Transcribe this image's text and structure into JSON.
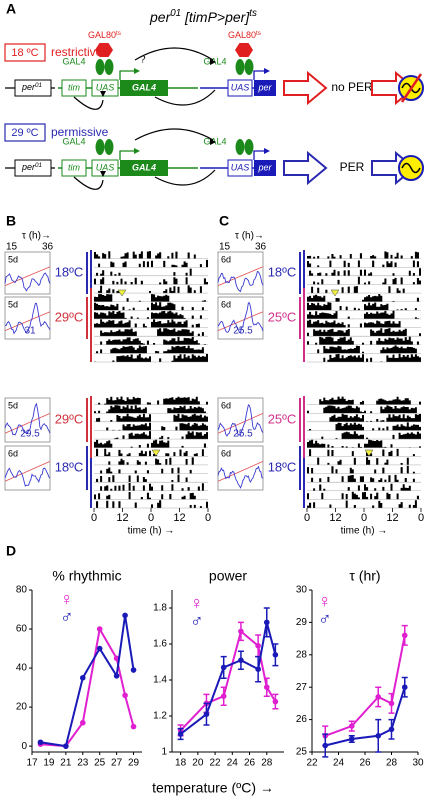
{
  "panel_a": {
    "label": "A",
    "title": {
      "gene": "per",
      "gene_sup": "01",
      "construct": " [timP>per]",
      "construct_sup": "ts"
    },
    "rows": [
      {
        "temperature": "18 ºC",
        "condition": "restrictive",
        "color": "#e02020",
        "per01": "per",
        "per01_sup": "01",
        "tim": "tim",
        "uas_left": "UAS",
        "gal4_box": "GAL4",
        "gal4_left": "GAL4",
        "gal4_right": "GAL4",
        "uas_right": "UAS",
        "per": "per",
        "outcome": "no PER",
        "question": "?",
        "gal80": [
          {
            "text": "GAL80",
            "sup": "ts"
          },
          {
            "text": "GAL80",
            "sup": "ts"
          }
        ]
      },
      {
        "temperature": "29 ºC",
        "condition": "permissive",
        "color": "#2a2ab0",
        "per01": "per",
        "per01_sup": "01",
        "tim": "tim",
        "uas_left": "UAS",
        "gal4_box": "GAL4",
        "gal4_left": "GAL4",
        "gal4_right": "GAL4",
        "uas_right": "UAS",
        "per": "per",
        "outcome": "PER"
      }
    ]
  },
  "panel_b": {
    "label": "B",
    "tau_label": "τ (h)→",
    "tau_min": 15,
    "tau_max": 36,
    "blocks": [
      {
        "insets": [
          {
            "days": "5d"
          },
          {
            "days": "5d",
            "period": 31
          }
        ],
        "temps": [
          {
            "text": "18ºC",
            "color": "#2a2ab0"
          },
          {
            "text": "29ºC",
            "color": "#d0303a"
          }
        ]
      },
      {
        "insets": [
          {
            "days": "5d",
            "period": 29.5
          },
          {
            "days": "6d"
          }
        ],
        "temps": [
          {
            "text": "29ºC",
            "color": "#d0303a"
          },
          {
            "text": "18ºC",
            "color": "#2a2ab0"
          }
        ]
      }
    ],
    "time_ticks": [
      0,
      12,
      0,
      12,
      0
    ],
    "time_label": "time (h) →"
  },
  "panel_c": {
    "label": "C",
    "tau_label": "τ (h)→",
    "tau_min": 15,
    "tau_max": 36,
    "blocks": [
      {
        "insets": [
          {
            "days": "6d"
          },
          {
            "days": "6d",
            "period": 25.5
          }
        ],
        "temps": [
          {
            "text": "18ºC",
            "color": "#2a2ab0"
          },
          {
            "text": "25ºC",
            "color": "#d0308a"
          }
        ]
      },
      {
        "insets": [
          {
            "days": "6d",
            "period": 25.5
          },
          {
            "days": "6d"
          }
        ],
        "temps": [
          {
            "text": "25ºC",
            "color": "#d0308a"
          },
          {
            "text": "18ºC",
            "color": "#2a2ab0"
          }
        ]
      }
    ],
    "time_ticks": [
      0,
      12,
      0,
      12,
      0
    ],
    "time_label": "time (h) →"
  },
  "panel_d": {
    "label": "D",
    "x_label": "temperature (ºC) →"
  },
  "chart_data": [
    {
      "type": "line",
      "title": "% rhythmic",
      "x": [
        18,
        21,
        23,
        25,
        27,
        28,
        29
      ],
      "xlim": [
        17,
        30
      ],
      "xticks": [
        17,
        19,
        21,
        23,
        25,
        27,
        29
      ],
      "ylim": [
        -3,
        80
      ],
      "yticks": [
        0,
        20,
        40,
        60,
        80
      ],
      "series": [
        {
          "name": "♀",
          "color": "#e020d0",
          "values": [
            1,
            0,
            12,
            60,
            45,
            26,
            10
          ]
        },
        {
          "name": "♂",
          "color": "#1a1ab8",
          "values": [
            2,
            0,
            35,
            50,
            36,
            67,
            39
          ]
        }
      ]
    },
    {
      "type": "line",
      "title": "power",
      "x": [
        18,
        21,
        23,
        25,
        27,
        28,
        29
      ],
      "xlim": [
        17,
        30
      ],
      "xticks": [
        18,
        20,
        22,
        24,
        26,
        28
      ],
      "ylim": [
        1,
        1.9
      ],
      "yticks": [
        1,
        1.2,
        1.4,
        1.6,
        1.8
      ],
      "series": [
        {
          "name": "♀",
          "color": "#e020d0",
          "values": [
            1.12,
            1.27,
            1.31,
            1.67,
            1.59,
            1.36,
            1.28
          ],
          "errors": [
            0.03,
            0.05,
            0.05,
            0.05,
            0.06,
            0.05,
            0.04
          ]
        },
        {
          "name": "♂",
          "color": "#1a1ab8",
          "values": [
            1.1,
            1.21,
            1.47,
            1.51,
            1.46,
            1.72,
            1.54
          ],
          "errors": [
            0.03,
            0.06,
            0.06,
            0.05,
            0.07,
            0.08,
            0.06
          ]
        }
      ]
    },
    {
      "type": "line",
      "title": "τ (hr)",
      "x": [
        23,
        25,
        27,
        28,
        29
      ],
      "xlim": [
        22,
        30
      ],
      "xticks": [
        22,
        24,
        26,
        28,
        30
      ],
      "ylim": [
        25,
        30
      ],
      "yticks": [
        25,
        26,
        27,
        28,
        29,
        30
      ],
      "series": [
        {
          "name": "♀",
          "color": "#e020d0",
          "values": [
            25.5,
            25.8,
            26.7,
            26.5,
            28.6
          ],
          "errors": [
            0.3,
            0.15,
            0.3,
            0.3,
            0.3
          ]
        },
        {
          "name": "♂",
          "color": "#1a1ab8",
          "values": [
            25.2,
            25.4,
            25.5,
            25.7,
            27
          ],
          "errors": [
            0.35,
            0.1,
            0.5,
            0.3,
            0.3
          ]
        }
      ]
    }
  ]
}
